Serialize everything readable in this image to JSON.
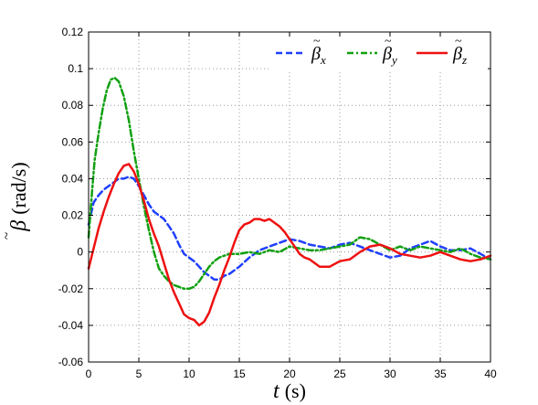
{
  "chart_data": {
    "type": "line",
    "title": "",
    "xlabel": {
      "symbol": "t",
      "unit": "(s)"
    },
    "ylabel": {
      "symbol": "β",
      "unit": "(rad/s)"
    },
    "xlim": [
      0,
      40
    ],
    "ylim": [
      -0.06,
      0.12
    ],
    "xticks": [
      0,
      5,
      10,
      15,
      20,
      25,
      30,
      35,
      40
    ],
    "xtick_labels": [
      "0",
      "5",
      "10",
      "15",
      "20",
      "25",
      "30",
      "35",
      "40"
    ],
    "yticks": [
      -0.06,
      -0.04,
      -0.02,
      0,
      0.02,
      0.04,
      0.06,
      0.08,
      0.1,
      0.12
    ],
    "ytick_labels": [
      "-0.06",
      "-0.04",
      "-0.02",
      "0",
      "0.02",
      "0.04",
      "0.06",
      "0.08",
      "0.1",
      "0.12"
    ],
    "grid": true,
    "grid_style": "dotted",
    "legend_position": "top-right",
    "series": [
      {
        "name": "β̃x",
        "symbol": "β",
        "subscript": "x",
        "color": "#1f3fff",
        "style": "dashed",
        "x": [
          0,
          0.5,
          1,
          1.5,
          2,
          2.5,
          3,
          3.5,
          4,
          4.5,
          5,
          5.5,
          6,
          6.5,
          7,
          7.5,
          8,
          8.5,
          9,
          9.5,
          10,
          10.5,
          11,
          11.5,
          12,
          12.5,
          13,
          13.5,
          14,
          15,
          16,
          17,
          18,
          19,
          20,
          21,
          22,
          23,
          24,
          25,
          26,
          27,
          28,
          29,
          30,
          31,
          32,
          33,
          34,
          35,
          36,
          37,
          38,
          39,
          40
        ],
        "y": [
          0.015,
          0.027,
          0.031,
          0.034,
          0.036,
          0.038,
          0.04,
          0.04,
          0.041,
          0.04,
          0.036,
          0.031,
          0.026,
          0.022,
          0.02,
          0.018,
          0.014,
          0.01,
          0.004,
          -0.001,
          -0.003,
          -0.005,
          -0.008,
          -0.011,
          -0.013,
          -0.015,
          -0.015,
          -0.013,
          -0.012,
          -0.008,
          -0.003,
          0.001,
          0.003,
          0.005,
          0.007,
          0.006,
          0.004,
          0.003,
          0.002,
          0.004,
          0.005,
          0.003,
          0.001,
          -0.001,
          -0.003,
          -0.002,
          0.002,
          0.004,
          0.006,
          0.003,
          0.001,
          0.001,
          0.002,
          -0.001,
          -0.004
        ]
      },
      {
        "name": "β̃y",
        "symbol": "β",
        "subscript": "y",
        "color": "#11a011",
        "style": "dashdot",
        "x": [
          0,
          0.3,
          0.6,
          1,
          1.4,
          1.8,
          2.2,
          2.6,
          3,
          3.5,
          4,
          4.5,
          5,
          5.5,
          6,
          6.5,
          7,
          7.5,
          8,
          8.5,
          9,
          9.5,
          10,
          10.5,
          11,
          11.5,
          12,
          12.5,
          13,
          14,
          15,
          16,
          17,
          18,
          19,
          20,
          21,
          22,
          23,
          24,
          25,
          26,
          27,
          28,
          29,
          30,
          31,
          32,
          33,
          34,
          35,
          36,
          37,
          38,
          39,
          40
        ],
        "y": [
          0.008,
          0.03,
          0.05,
          0.065,
          0.078,
          0.088,
          0.094,
          0.095,
          0.093,
          0.085,
          0.072,
          0.055,
          0.04,
          0.025,
          0.012,
          0.0,
          -0.009,
          -0.013,
          -0.016,
          -0.018,
          -0.019,
          -0.02,
          -0.02,
          -0.019,
          -0.016,
          -0.012,
          -0.008,
          -0.005,
          -0.003,
          -0.001,
          -0.001,
          0.0,
          -0.001,
          0.001,
          0.0,
          0.003,
          0.002,
          0.001,
          0.001,
          0.002,
          0.003,
          0.004,
          0.008,
          0.007,
          0.004,
          0.001,
          0.003,
          0.001,
          0.003,
          0.002,
          0.001,
          0.0,
          0.002,
          -0.001,
          -0.003,
          -0.004
        ]
      },
      {
        "name": "β̃z",
        "symbol": "β",
        "subscript": "z",
        "color": "#ee1111",
        "style": "solid",
        "x": [
          0,
          0.5,
          1,
          1.5,
          2,
          2.5,
          3,
          3.5,
          4,
          4.5,
          5,
          5.5,
          6,
          6.5,
          7,
          7.5,
          8,
          8.5,
          9,
          9.5,
          10,
          10.5,
          11,
          11.5,
          12,
          12.5,
          13,
          13.5,
          14,
          14.5,
          15,
          15.5,
          16,
          16.5,
          17,
          17.5,
          18,
          18.5,
          19,
          19.5,
          20,
          20.5,
          21,
          21.5,
          22,
          23,
          24,
          25,
          26,
          27,
          28,
          29,
          30,
          31,
          32,
          33,
          34,
          35,
          36,
          37,
          38,
          39,
          40
        ],
        "y": [
          -0.009,
          0.002,
          0.013,
          0.022,
          0.03,
          0.037,
          0.043,
          0.047,
          0.048,
          0.044,
          0.037,
          0.028,
          0.018,
          0.01,
          0.003,
          -0.006,
          -0.015,
          -0.022,
          -0.028,
          -0.034,
          -0.036,
          -0.037,
          -0.04,
          -0.038,
          -0.033,
          -0.025,
          -0.018,
          -0.01,
          -0.003,
          0.005,
          0.012,
          0.015,
          0.016,
          0.018,
          0.018,
          0.017,
          0.018,
          0.016,
          0.014,
          0.011,
          0.007,
          0.003,
          -0.001,
          -0.003,
          -0.004,
          -0.008,
          -0.008,
          -0.005,
          -0.004,
          0.0,
          0.003,
          0.004,
          0.002,
          -0.001,
          -0.002,
          -0.003,
          -0.002,
          0.0,
          -0.002,
          -0.004,
          -0.005,
          -0.004,
          -0.002
        ]
      }
    ]
  }
}
